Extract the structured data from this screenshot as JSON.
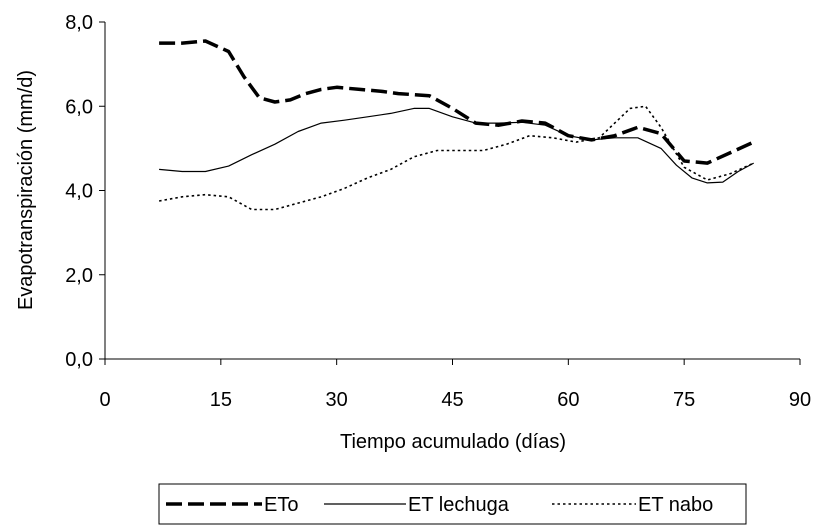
{
  "chart_data": {
    "type": "line",
    "xlabel": "Tiempo acumulado (días)",
    "ylabel": "Evapotranspiración (mm/d)",
    "xlim": [
      0,
      90
    ],
    "ylim": [
      0,
      8
    ],
    "x_ticks": [
      0,
      15,
      30,
      45,
      60,
      75,
      90
    ],
    "x_tick_labels": [
      "0",
      "15",
      "30",
      "45",
      "60",
      "75",
      "90"
    ],
    "y_ticks": [
      0,
      2,
      4,
      6,
      8
    ],
    "y_tick_labels": [
      "0,0",
      "2,0",
      "4,0",
      "6,0",
      "8,0"
    ],
    "grid": false,
    "legend": "bottom",
    "series": [
      {
        "name": "ETo",
        "style": "long-dash",
        "color": "#000000",
        "x": [
          7,
          10,
          13,
          16,
          18,
          20,
          22,
          24,
          26,
          28,
          30,
          33,
          36,
          38,
          42,
          45,
          48,
          51,
          54,
          57,
          60,
          63,
          66,
          69,
          72,
          75,
          78,
          81,
          84
        ],
        "y": [
          7.5,
          7.5,
          7.55,
          7.3,
          6.7,
          6.2,
          6.1,
          6.15,
          6.3,
          6.4,
          6.45,
          6.4,
          6.35,
          6.3,
          6.25,
          5.95,
          5.6,
          5.55,
          5.65,
          5.6,
          5.3,
          5.2,
          5.3,
          5.5,
          5.35,
          4.7,
          4.65,
          4.9,
          5.15
        ]
      },
      {
        "name": "ET lechuga",
        "style": "solid",
        "color": "#000000",
        "x": [
          7,
          10,
          13,
          16,
          19,
          22,
          25,
          28,
          31,
          34,
          37,
          40,
          42,
          45,
          48,
          51,
          54,
          57,
          60,
          63,
          66,
          69,
          72,
          74,
          76,
          78,
          80,
          82,
          84
        ],
        "y": [
          4.5,
          4.45,
          4.45,
          4.58,
          4.85,
          5.1,
          5.4,
          5.6,
          5.67,
          5.75,
          5.83,
          5.95,
          5.95,
          5.75,
          5.6,
          5.6,
          5.62,
          5.55,
          5.3,
          5.2,
          5.25,
          5.25,
          5.0,
          4.6,
          4.3,
          4.18,
          4.2,
          4.45,
          4.65
        ]
      },
      {
        "name": "ET nabo",
        "style": "dotted",
        "color": "#000000",
        "x": [
          7,
          10,
          13,
          16,
          19,
          22,
          25,
          28,
          31,
          34,
          37,
          40,
          43,
          46,
          49,
          52,
          55,
          58,
          61,
          64,
          66,
          68,
          70,
          72,
          75,
          78,
          81,
          84
        ],
        "y": [
          3.75,
          3.85,
          3.9,
          3.85,
          3.55,
          3.55,
          3.7,
          3.85,
          4.05,
          4.3,
          4.5,
          4.8,
          4.95,
          4.95,
          4.95,
          5.1,
          5.3,
          5.25,
          5.15,
          5.25,
          5.6,
          5.95,
          6.0,
          5.5,
          4.55,
          4.25,
          4.4,
          4.65
        ]
      }
    ]
  }
}
